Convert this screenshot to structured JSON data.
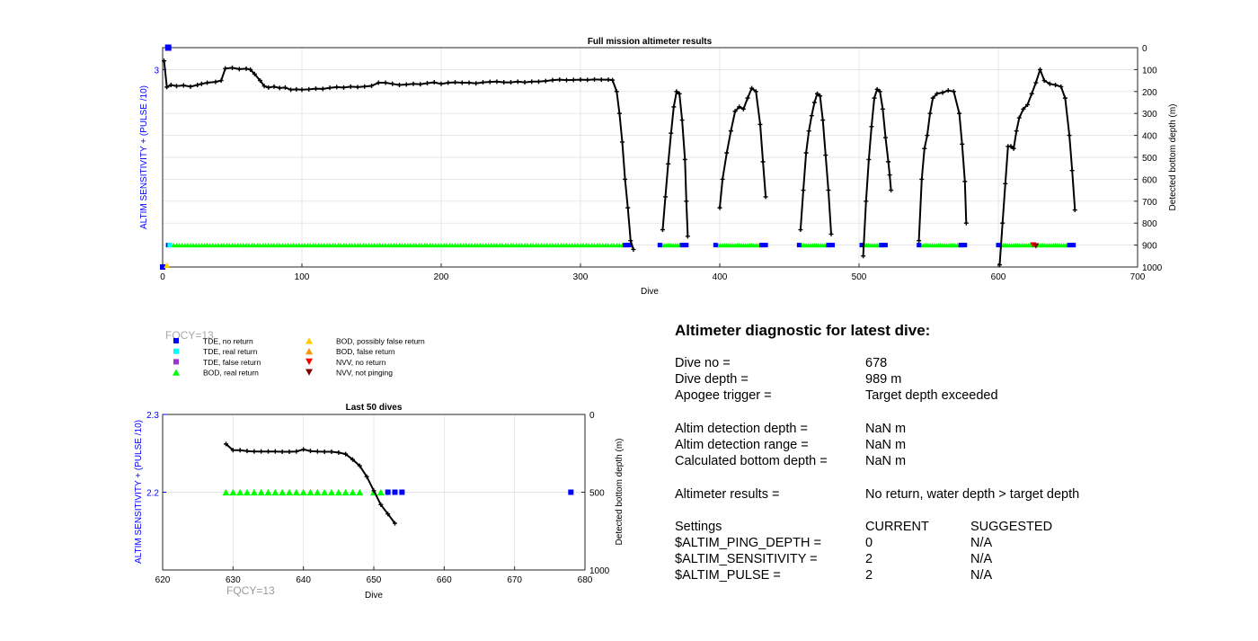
{
  "chart_data": [
    {
      "type": "line",
      "title": "Full mission altimeter results",
      "xlabel": "Dive",
      "ylabel_left": "ALTIM SENSITIVITY + (PULSE /10)",
      "ylabel_right": "Detected bottom depth (m)",
      "xlim": [
        0,
        700
      ],
      "xticks": [
        "0",
        "100",
        "200",
        "300",
        "400",
        "500",
        "600",
        "700"
      ],
      "ylim_left": [
        2.1,
        3.1
      ],
      "yticks_left": [
        "3"
      ],
      "ylim_right": [
        1000,
        0
      ],
      "yticks_right": [
        "0",
        "100",
        "200",
        "300",
        "400",
        "500",
        "600",
        "700",
        "800",
        "900",
        "1000"
      ],
      "grid": true,
      "depth_profile": [
        [
          1,
          60
        ],
        [
          3,
          180
        ],
        [
          6,
          170
        ],
        [
          10,
          175
        ],
        [
          15,
          172
        ],
        [
          20,
          178
        ],
        [
          25,
          170
        ],
        [
          28,
          165
        ],
        [
          32,
          160
        ],
        [
          38,
          156
        ],
        [
          42,
          150
        ],
        [
          45,
          95
        ],
        [
          50,
          92
        ],
        [
          55,
          98
        ],
        [
          60,
          96
        ],
        [
          63,
          100
        ],
        [
          66,
          120
        ],
        [
          70,
          150
        ],
        [
          73,
          175
        ],
        [
          76,
          182
        ],
        [
          80,
          178
        ],
        [
          84,
          184
        ],
        [
          88,
          182
        ],
        [
          92,
          192
        ],
        [
          96,
          190
        ],
        [
          100,
          192
        ],
        [
          105,
          190
        ],
        [
          110,
          187
        ],
        [
          115,
          188
        ],
        [
          120,
          183
        ],
        [
          125,
          180
        ],
        [
          130,
          182
        ],
        [
          135,
          178
        ],
        [
          140,
          180
        ],
        [
          145,
          177
        ],
        [
          150,
          174
        ],
        [
          155,
          160
        ],
        [
          160,
          160
        ],
        [
          165,
          165
        ],
        [
          170,
          170
        ],
        [
          175,
          168
        ],
        [
          180,
          165
        ],
        [
          185,
          167
        ],
        [
          190,
          162
        ],
        [
          195,
          158
        ],
        [
          200,
          165
        ],
        [
          205,
          160
        ],
        [
          210,
          158
        ],
        [
          215,
          160
        ],
        [
          220,
          160
        ],
        [
          225,
          163
        ],
        [
          230,
          158
        ],
        [
          235,
          156
        ],
        [
          240,
          155
        ],
        [
          245,
          158
        ],
        [
          250,
          158
        ],
        [
          255,
          155
        ],
        [
          260,
          158
        ],
        [
          265,
          155
        ],
        [
          270,
          155
        ],
        [
          275,
          152
        ],
        [
          280,
          148
        ],
        [
          285,
          146
        ],
        [
          290,
          148
        ],
        [
          295,
          147
        ],
        [
          300,
          146
        ],
        [
          305,
          147
        ],
        [
          310,
          145
        ],
        [
          315,
          146
        ],
        [
          320,
          146
        ],
        [
          323,
          148
        ],
        [
          326,
          200
        ],
        [
          328,
          300
        ],
        [
          330,
          430
        ],
        [
          332,
          600
        ],
        [
          334,
          730
        ],
        [
          336,
          880
        ],
        [
          338,
          920
        ],
        [
          359,
          830
        ],
        [
          361,
          680
        ],
        [
          363,
          530
        ],
        [
          365,
          390
        ],
        [
          367,
          270
        ],
        [
          369,
          200
        ],
        [
          371,
          210
        ],
        [
          373,
          330
        ],
        [
          375,
          510
        ],
        [
          376,
          700
        ],
        [
          377,
          860
        ],
        [
          400,
          730
        ],
        [
          402,
          600
        ],
        [
          405,
          480
        ],
        [
          408,
          380
        ],
        [
          411,
          290
        ],
        [
          414,
          270
        ],
        [
          417,
          280
        ],
        [
          420,
          230
        ],
        [
          423,
          185
        ],
        [
          426,
          200
        ],
        [
          429,
          350
        ],
        [
          431,
          520
        ],
        [
          433,
          680
        ],
        [
          458,
          830
        ],
        [
          460,
          650
        ],
        [
          462,
          480
        ],
        [
          464,
          380
        ],
        [
          466,
          310
        ],
        [
          468,
          250
        ],
        [
          470,
          210
        ],
        [
          472,
          220
        ],
        [
          474,
          330
        ],
        [
          476,
          490
        ],
        [
          478,
          650
        ],
        [
          480,
          850
        ],
        [
          503,
          950
        ],
        [
          505,
          700
        ],
        [
          507,
          510
        ],
        [
          509,
          360
        ],
        [
          511,
          230
        ],
        [
          513,
          190
        ],
        [
          515,
          200
        ],
        [
          517,
          280
        ],
        [
          519,
          410
        ],
        [
          521,
          520
        ],
        [
          522,
          580
        ],
        [
          523,
          650
        ],
        [
          543,
          880
        ],
        [
          545,
          600
        ],
        [
          547,
          460
        ],
        [
          549,
          400
        ],
        [
          551,
          300
        ],
        [
          553,
          230
        ],
        [
          556,
          210
        ],
        [
          560,
          205
        ],
        [
          564,
          195
        ],
        [
          568,
          200
        ],
        [
          572,
          300
        ],
        [
          574,
          440
        ],
        [
          576,
          610
        ],
        [
          577,
          800
        ],
        [
          601,
          990
        ],
        [
          603,
          800
        ],
        [
          605,
          620
        ],
        [
          607,
          450
        ],
        [
          609,
          450
        ],
        [
          611,
          460
        ],
        [
          613,
          380
        ],
        [
          615,
          320
        ],
        [
          618,
          280
        ],
        [
          621,
          260
        ],
        [
          624,
          210
        ],
        [
          627,
          160
        ],
        [
          630,
          100
        ],
        [
          633,
          150
        ],
        [
          637,
          165
        ],
        [
          641,
          170
        ],
        [
          645,
          178
        ],
        [
          648,
          230
        ],
        [
          651,
          400
        ],
        [
          653,
          560
        ],
        [
          655,
          740
        ]
      ],
      "tde_no_return_left_val": [
        [
          2,
          2.1
        ],
        [
          3,
          3.12
        ]
      ],
      "markers_level": 2.2
    },
    {
      "type": "line",
      "title": "Last 50 dives",
      "xlabel": "Dive",
      "ylabel_left": "ALTIM SENSITIVITY + (PULSE /10)",
      "ylabel_right": "Detected bottom depth (m)",
      "xlim": [
        620,
        680
      ],
      "xticks": [
        "620",
        "630",
        "640",
        "650",
        "660",
        "670",
        "680"
      ],
      "ylim_left": [
        2.1,
        2.3
      ],
      "yticks_left": [
        "2.2",
        "2.3"
      ],
      "ylim_right": [
        1000,
        0
      ],
      "yticks_right": [
        "0",
        "500",
        "1000"
      ],
      "depth": [
        [
          629,
          190
        ],
        [
          630,
          230
        ],
        [
          631,
          230
        ],
        [
          632,
          235
        ],
        [
          633,
          238
        ],
        [
          634,
          238
        ],
        [
          635,
          238
        ],
        [
          636,
          238
        ],
        [
          637,
          240
        ],
        [
          638,
          240
        ],
        [
          639,
          238
        ],
        [
          640,
          225
        ],
        [
          641,
          235
        ],
        [
          642,
          238
        ],
        [
          643,
          240
        ],
        [
          644,
          240
        ],
        [
          645,
          245
        ],
        [
          646,
          255
        ],
        [
          647,
          290
        ],
        [
          648,
          330
        ],
        [
          649,
          400
        ],
        [
          650,
          490
        ],
        [
          651,
          580
        ],
        [
          652,
          640
        ],
        [
          653,
          700
        ]
      ],
      "bod_real_return": [
        629,
        630,
        631,
        632,
        633,
        634,
        635,
        636,
        637,
        638,
        639,
        640,
        641,
        642,
        643,
        644,
        645,
        646,
        647,
        648,
        650,
        651
      ],
      "tde_no_return": [
        652,
        653,
        654,
        678
      ],
      "fqcy_label": "FQCY=13"
    }
  ],
  "fqcy_faded": "FQCY=13",
  "legend": [
    {
      "label": "TDE, no return",
      "color": "#0000ff",
      "shape": "square"
    },
    {
      "label": "TDE, real return",
      "color": "#00ffff",
      "shape": "square"
    },
    {
      "label": "TDE, false return",
      "color": "#9933cc",
      "shape": "square"
    },
    {
      "label": "BOD, real return",
      "color": "#00ff00",
      "shape": "triangle-up"
    },
    {
      "label": "BOD, possibly false return",
      "color": "#ffcc00",
      "shape": "triangle-up"
    },
    {
      "label": "BOD, false return",
      "color": "#ff9900",
      "shape": "triangle-up"
    },
    {
      "label": "NVV, no return",
      "color": "#ff0000",
      "shape": "triangle-down"
    },
    {
      "label": "NVV, not pinging",
      "color": "#800000",
      "shape": "triangle-down"
    }
  ],
  "diagnostic": {
    "title": "Altimeter diagnostic for latest dive:",
    "dive_no_label": "Dive no =",
    "dive_no": "678",
    "dive_depth_label": "Dive depth =",
    "dive_depth": "989 m",
    "apogee_label": "Apogee trigger =",
    "apogee": "Target depth exceeded",
    "altim_depth_label": "Altim detection depth =",
    "altim_depth": "NaN m",
    "altim_range_label": "Altim detection range =",
    "altim_range": "NaN m",
    "calc_depth_label": "Calculated bottom depth =",
    "calc_depth": "NaN m",
    "results_label": "Altimeter results =",
    "results": "No return, water depth > target depth",
    "settings_label": "Settings",
    "current_label": "CURRENT",
    "suggested_label": "SUGGESTED",
    "ping_depth_label": "$ALTIM_PING_DEPTH =",
    "ping_depth_cur": "0",
    "ping_depth_sug": "N/A",
    "sensitivity_label": "$ALTIM_SENSITIVITY =",
    "sensitivity_cur": "2",
    "sensitivity_sug": "N/A",
    "pulse_label": "$ALTIM_PULSE =",
    "pulse_cur": "2",
    "pulse_sug": "N/A"
  },
  "colors": {
    "left_axis": "#0000ff",
    "bod_real": "#00ff00",
    "tde_no_return": "#0000ff",
    "tde_real": "#00ffff",
    "depth_line": "#000000",
    "grid": "#dddddd",
    "faded_text": "#9a9a9a"
  }
}
